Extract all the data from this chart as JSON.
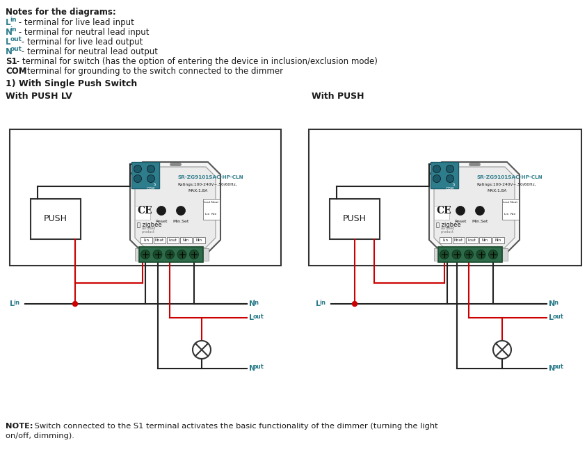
{
  "bg_color": "#ffffff",
  "teal_color": "#2e7d8c",
  "orange_color": "#c8620a",
  "red_wire": "#cc0000",
  "black_wire": "#222222",
  "section_title": "1) With Single Push Switch",
  "left_label": "With PUSH LV",
  "right_label": "With PUSH",
  "push_label": "PUSH",
  "device_model": "SR-ZG9101SAC-HP-CLN",
  "device_ratings": "Ratings:100-240V~,50/60Hz,",
  "device_max": "MAX:1.8A",
  "terminal_labels": [
    "Lin",
    "Nout",
    "Lout",
    "Nin",
    "Nin"
  ],
  "note_bottom_bold": "NOTE:",
  "note_bottom_rest": " Switch connected to the S1 terminal activates the basic functionality of the dimmer (turning the light",
  "note_bottom_line2": "on/off, dimming).",
  "notes_header": "Notes for the diagrams:",
  "notes": [
    {
      "main": "L",
      "sub": "in",
      "rest": " - terminal for live lead input",
      "colored": true
    },
    {
      "main": "N",
      "sub": "in",
      "rest": " - terminal for neutral lead input",
      "colored": true
    },
    {
      "main": "L",
      "sub": "out",
      "rest": " - terminal for live lead output",
      "colored": true
    },
    {
      "main": "N",
      "sub": "out",
      "rest": " - terminal for neutral lead output",
      "colored": true
    },
    {
      "main": "S1",
      "sub": "",
      "rest": " - terminal for switch (has the option of entering the device in inclusion/exclusion mode)",
      "colored": false
    },
    {
      "main": "COM",
      "sub": "",
      "rest": " - terminal for grounding to the switch connected to the dimmer",
      "colored": false
    }
  ]
}
